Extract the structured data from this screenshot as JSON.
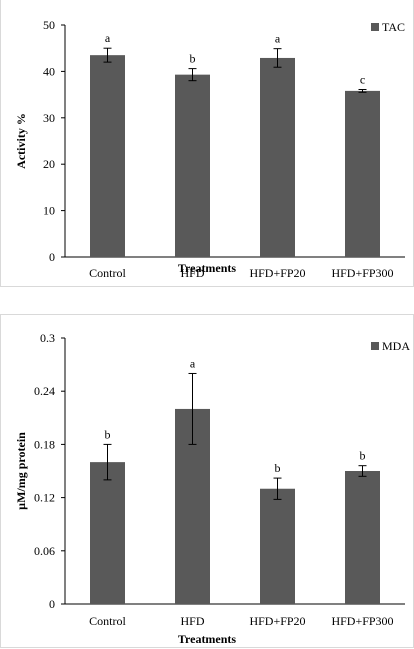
{
  "colors": {
    "bar": "#595959",
    "axis": "#000000",
    "error_bar": "#000000"
  },
  "chart_data": [
    {
      "type": "bar",
      "categories": [
        "Control",
        "HFD",
        "HFD+FP20",
        "HFD+FP300"
      ],
      "series": [
        {
          "name": "TAC",
          "values": [
            43.5,
            39.3,
            42.9,
            35.8
          ],
          "errors": [
            1.5,
            1.3,
            2.0,
            0.3
          ]
        }
      ],
      "significance_letters": [
        "a",
        "b",
        "a",
        "c"
      ],
      "xlabel": "Treatments",
      "ylabel": "Activity %",
      "ylim": [
        0,
        50
      ],
      "yticks": [
        0,
        10,
        20,
        30,
        40,
        50
      ],
      "legend_position": "top-right",
      "grid": false
    },
    {
      "type": "bar",
      "categories": [
        "Control",
        "HFD",
        "HFD+FP20",
        "HFD+FP300"
      ],
      "series": [
        {
          "name": "MDA",
          "values": [
            0.16,
            0.22,
            0.13,
            0.15
          ],
          "errors": [
            0.02,
            0.04,
            0.012,
            0.006
          ]
        }
      ],
      "significance_letters": [
        "b",
        "a",
        "b",
        "b"
      ],
      "xlabel": "Treatments",
      "ylabel": "µM/mg protein",
      "ylim": [
        0,
        0.3
      ],
      "yticks": [
        "0",
        "0.06",
        "0.12",
        "0.18",
        "0.24",
        "0.3"
      ],
      "legend_position": "top-right",
      "grid": false
    }
  ]
}
